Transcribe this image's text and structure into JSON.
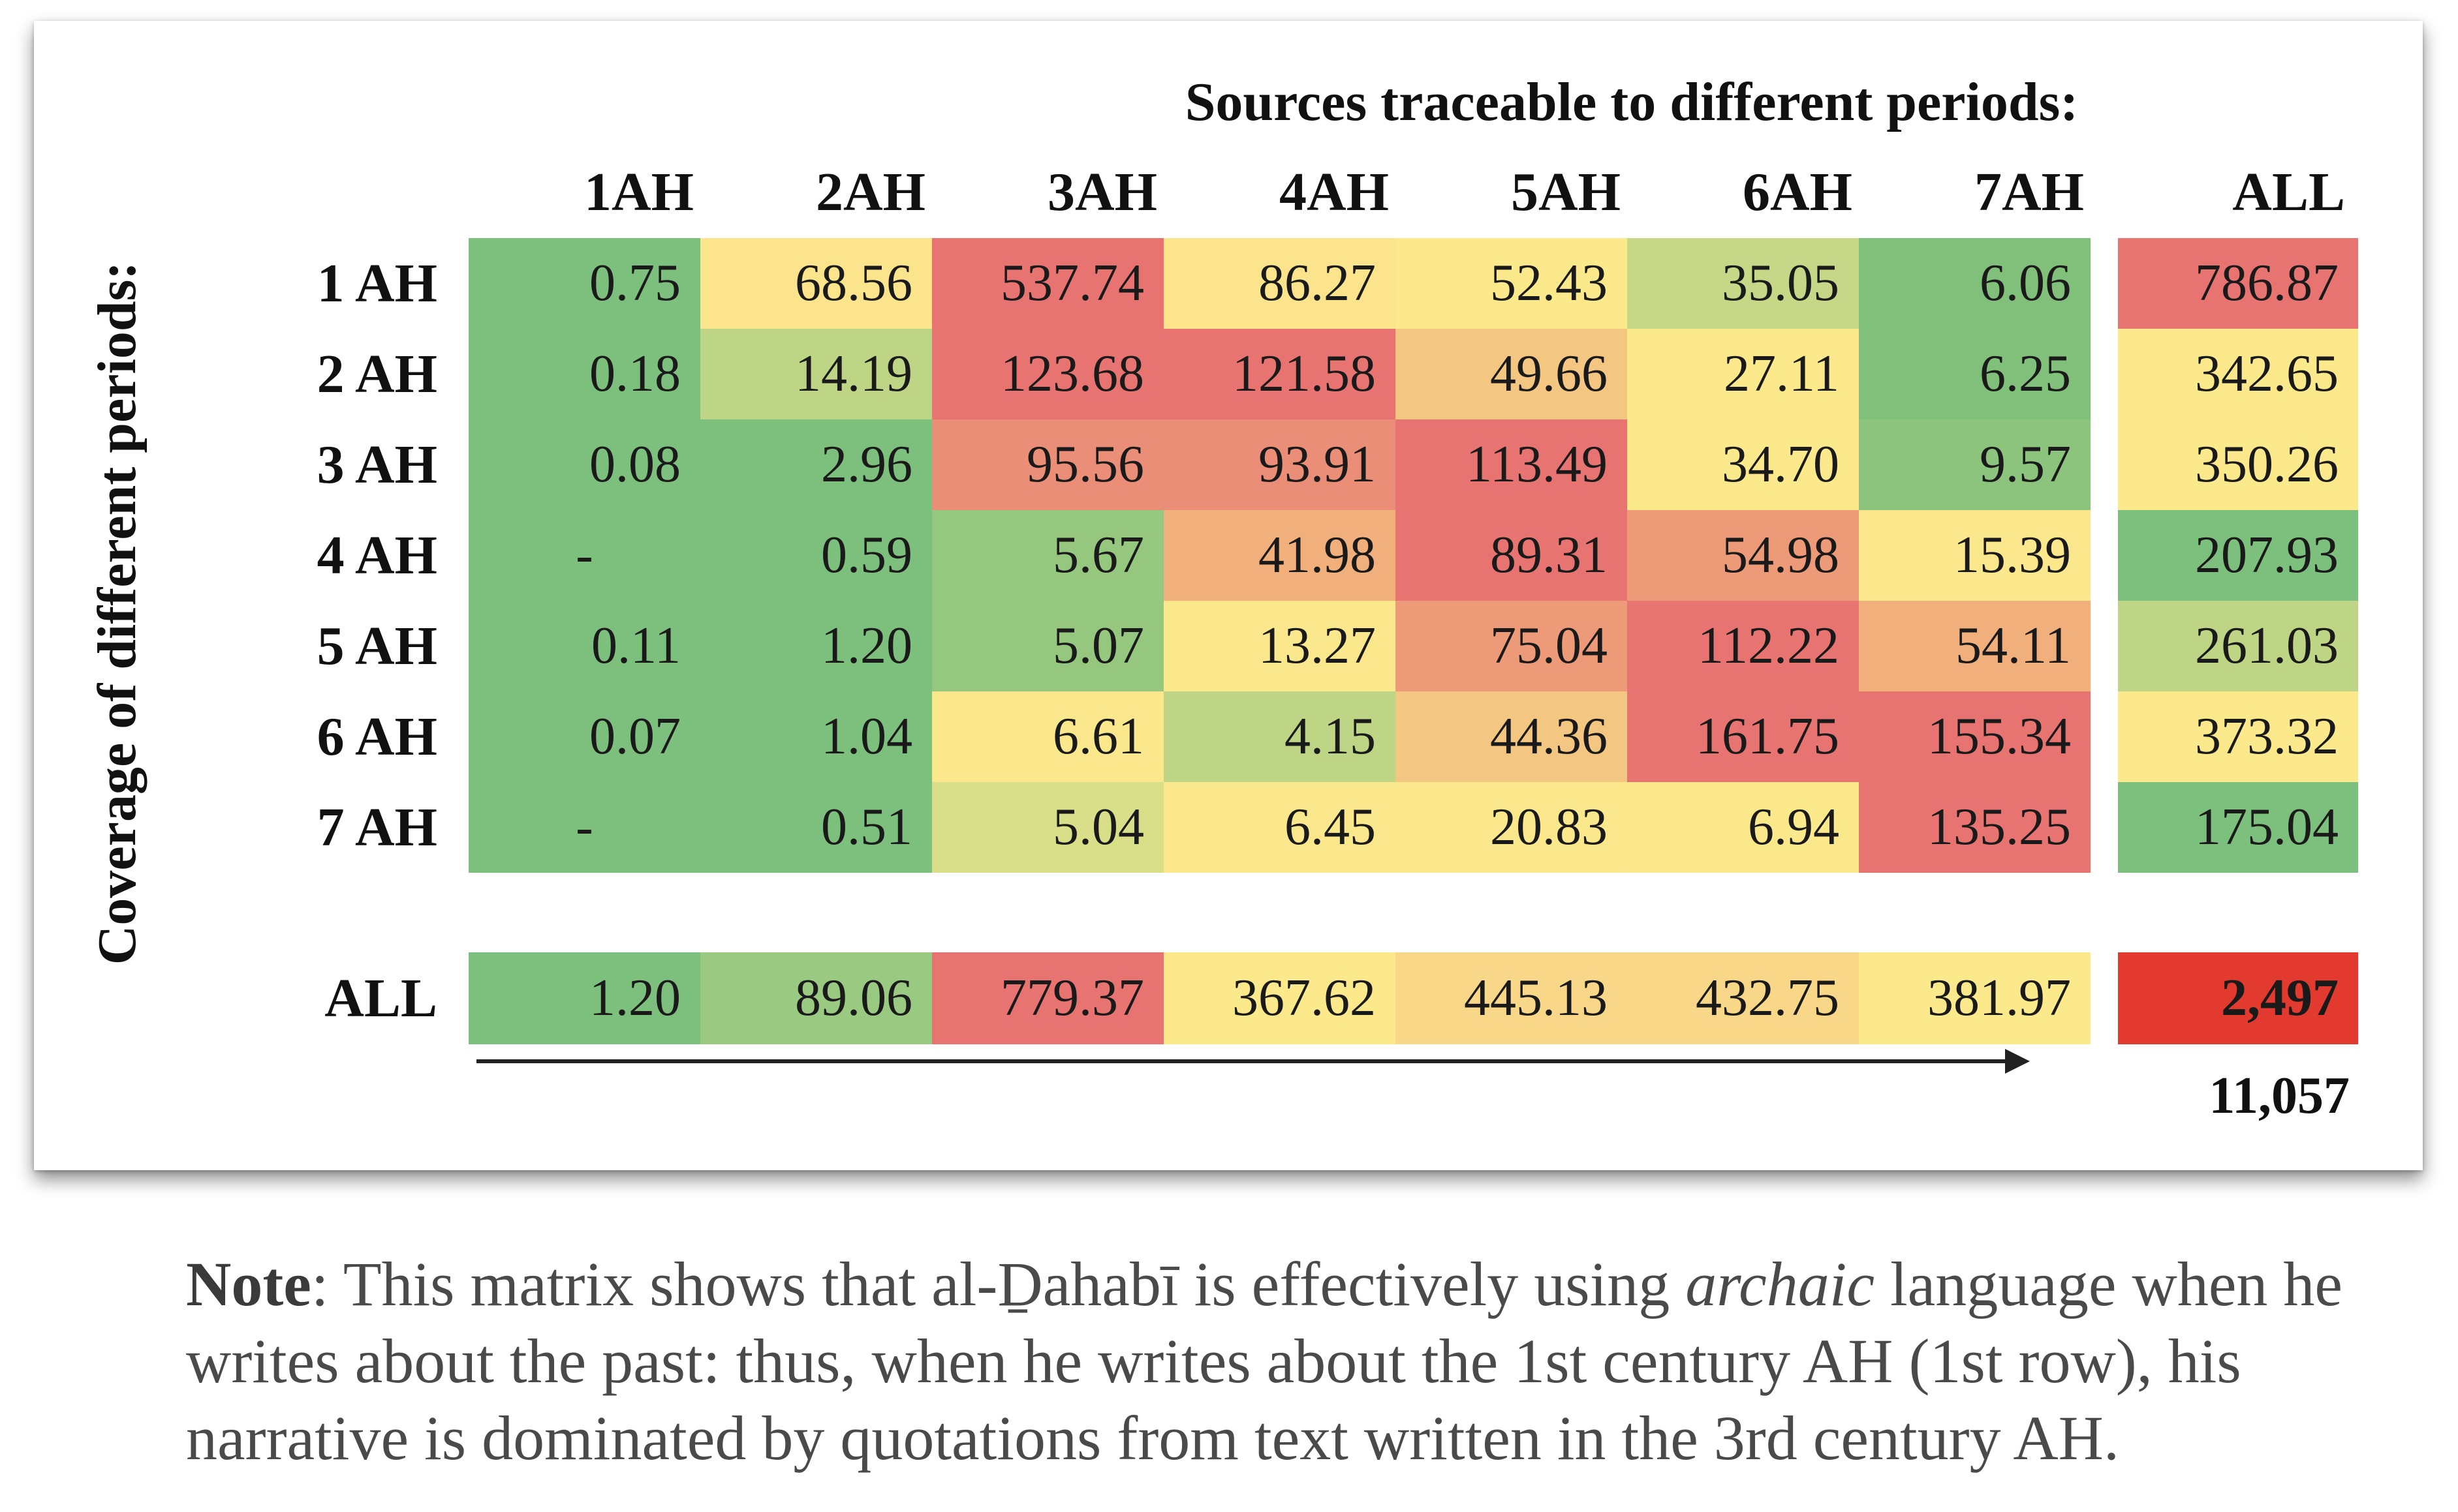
{
  "chart_data": {
    "type": "heatmap",
    "title": "Sources traceable to different periods:",
    "ylabel": "Coverage of different periods:",
    "columns": [
      "1AH",
      "2AH",
      "3AH",
      "4AH",
      "5AH",
      "6AH",
      "7AH"
    ],
    "rows": [
      "1 AH",
      "2 AH",
      "3 AH",
      "4 AH",
      "5 AH",
      "6 AH",
      "7 AH"
    ],
    "row_total_label": "ALL",
    "col_total_label": "ALL",
    "values": [
      [
        "0.75",
        "68.56",
        "537.74",
        "86.27",
        "52.43",
        "35.05",
        "6.06"
      ],
      [
        "0.18",
        "14.19",
        "123.68",
        "121.58",
        "49.66",
        "27.11",
        "6.25"
      ],
      [
        "0.08",
        "2.96",
        "95.56",
        "93.91",
        "113.49",
        "34.70",
        "9.57"
      ],
      [
        "-",
        "0.59",
        "5.67",
        "41.98",
        "89.31",
        "54.98",
        "15.39"
      ],
      [
        "0.11",
        "1.20",
        "5.07",
        "13.27",
        "75.04",
        "112.22",
        "54.11"
      ],
      [
        "0.07",
        "1.04",
        "6.61",
        "4.15",
        "44.36",
        "161.75",
        "155.34"
      ],
      [
        "-",
        "0.51",
        "5.04",
        "6.45",
        "20.83",
        "6.94",
        "135.25"
      ]
    ],
    "colors": [
      [
        "#7dbf7c",
        "#fce48c",
        "#e87472",
        "#fce48c",
        "#fce98c",
        "#c6d787",
        "#81c07b"
      ],
      [
        "#7dbf7c",
        "#bdd584",
        "#e87472",
        "#e87472",
        "#f3c682",
        "#fce98c",
        "#81c07b"
      ],
      [
        "#7dbf7c",
        "#7dbf7c",
        "#eb8e78",
        "#eb8e78",
        "#e87472",
        "#fce98c",
        "#8cc47e"
      ],
      [
        "#7dbf7c",
        "#7dbf7c",
        "#95c77f",
        "#f1b07b",
        "#e87472",
        "#ec9a78",
        "#fce88c"
      ],
      [
        "#7dbf7c",
        "#7dbf7c",
        "#95c77f",
        "#fce88c",
        "#ec9a78",
        "#e87472",
        "#f1b07b"
      ],
      [
        "#7dbf7c",
        "#7dbf7c",
        "#fce88c",
        "#bdd584",
        "#f3c682",
        "#e87472",
        "#e87472"
      ],
      [
        "#7dbf7c",
        "#7dbf7c",
        "#d8df88",
        "#fce88c",
        "#fce88c",
        "#fce98c",
        "#e87472"
      ]
    ],
    "row_totals": [
      "786.87",
      "342.65",
      "350.26",
      "207.93",
      "261.03",
      "373.32",
      "175.04"
    ],
    "row_total_colors": [
      "#e87472",
      "#fce98c",
      "#fce98c",
      "#7dbf7c",
      "#bdd584",
      "#fce98c",
      "#7dbf7c"
    ],
    "col_totals": [
      "1.20",
      "89.06",
      "779.37",
      "367.62",
      "445.13",
      "432.75",
      "381.97"
    ],
    "col_total_colors": [
      "#7dbf7c",
      "#9ac982",
      "#e87472",
      "#fce98c",
      "#f8d888",
      "#f8d888",
      "#fce98c"
    ],
    "grand_total": "2,497",
    "grand_total_color": "#e23a2e",
    "overall_total": "11,057"
  },
  "note": {
    "bold": "Note",
    "text1": ": This matrix shows that al-Ḏahabī is effectively using ",
    "italic": "archaic",
    "text2": " language when he writes about the past: thus, when he writes about the 1st century AH (1st row), his narrative is dominated by quotations from text written in the 3rd century AH."
  }
}
